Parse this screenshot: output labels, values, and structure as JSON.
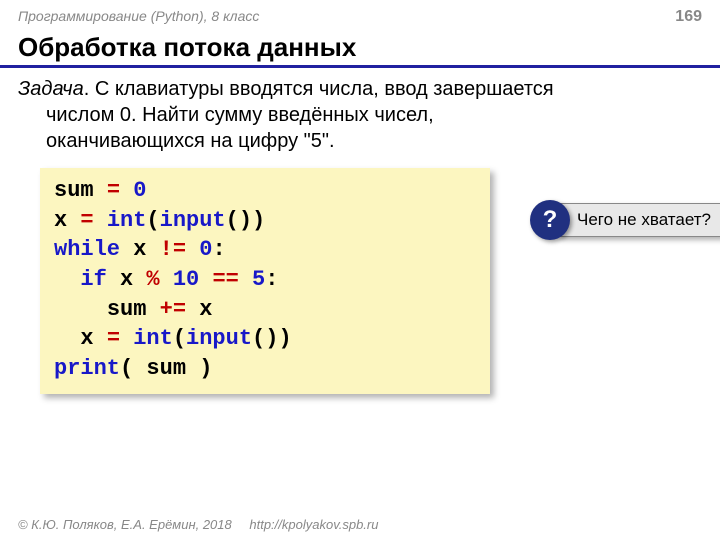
{
  "header": {
    "course": "Программирование (Python), 8 класс",
    "page": "169"
  },
  "title": "Обработка потока данных",
  "task": {
    "label": "Задача",
    "line1": ". С клавиатуры вводятся числа, ввод завершается",
    "line2": "числом 0. Найти сумму введённых чисел,",
    "line3": "оканчивающихся на цифру \"5\"."
  },
  "code": {
    "colors": {
      "keyword": "#1818c8",
      "number": "#1818c8",
      "operator": "#c00000",
      "identifier": "#000000",
      "background": "#fcf6c0"
    },
    "tokens": {
      "sum": "sum",
      "eq": "=",
      "zero": "0",
      "x": "x",
      "int": "int",
      "lp": "(",
      "input": "input",
      "rp": ")",
      "rp2": ")",
      "while": "while",
      "ne": "!=",
      "colon": ":",
      "if": "if",
      "mod": "%",
      "ten": "10",
      "eqeq": "==",
      "five": "5",
      "pluseq": "+=",
      "print": "print",
      "sp": " "
    }
  },
  "callout": {
    "icon": "?",
    "text": "Чего не хватает?"
  },
  "footer": {
    "copyright": "© К.Ю. Поляков, Е.А. Ерёмин, 2018",
    "url": "http://kpolyakov.spb.ru"
  }
}
